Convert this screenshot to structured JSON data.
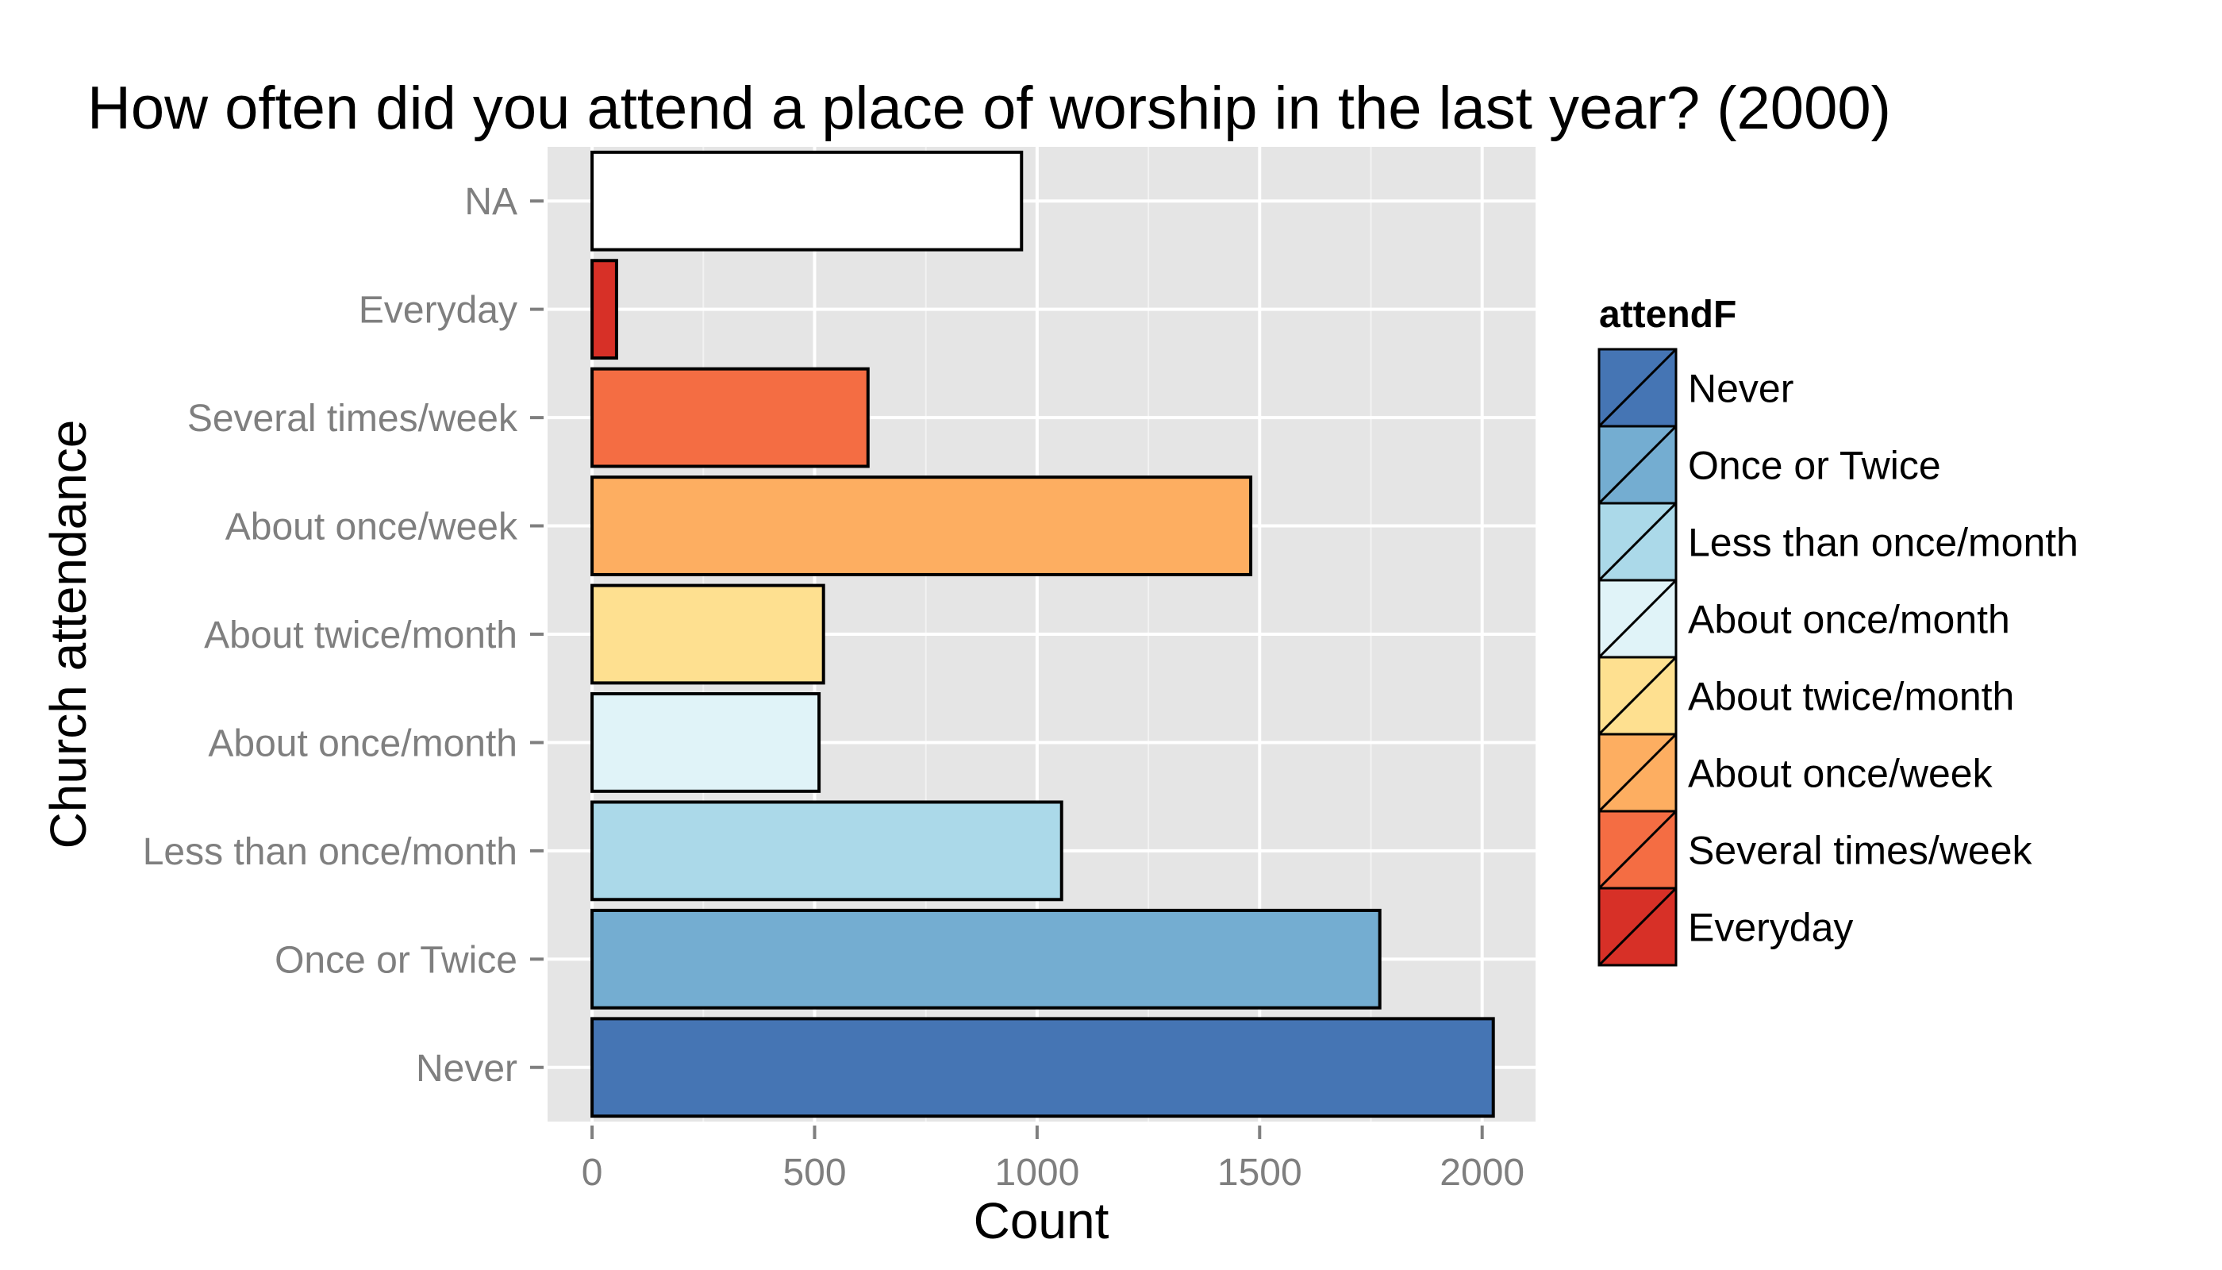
{
  "chart_data": {
    "type": "bar",
    "orientation": "horizontal",
    "title": "How often did you attend a place of worship in the last year? (2000)",
    "xlabel": "Count",
    "ylabel": "Church attendance",
    "xlim": [
      -100,
      2120
    ],
    "xticks": [
      0,
      500,
      1000,
      1500,
      2000
    ],
    "grid": true,
    "categories": [
      "Never",
      "Once or Twice",
      "Less than once/month",
      "About once/month",
      "About twice/month",
      "About once/week",
      "Several times/week",
      "Everyday",
      "NA"
    ],
    "values": [
      2025,
      1770,
      1055,
      510,
      520,
      1480,
      620,
      55,
      965
    ],
    "colors": [
      "#4575b4",
      "#74add1",
      "#abd9e9",
      "#e0f3f8",
      "#fee090",
      "#fdae61",
      "#f46d43",
      "#d73027",
      "#ffffff"
    ],
    "legend": {
      "title": "attendF",
      "position": "right",
      "entries": [
        "Never",
        "Once or Twice",
        "Less than once/month",
        "About once/month",
        "About twice/month",
        "About once/week",
        "Several times/week",
        "Everyday"
      ]
    }
  }
}
